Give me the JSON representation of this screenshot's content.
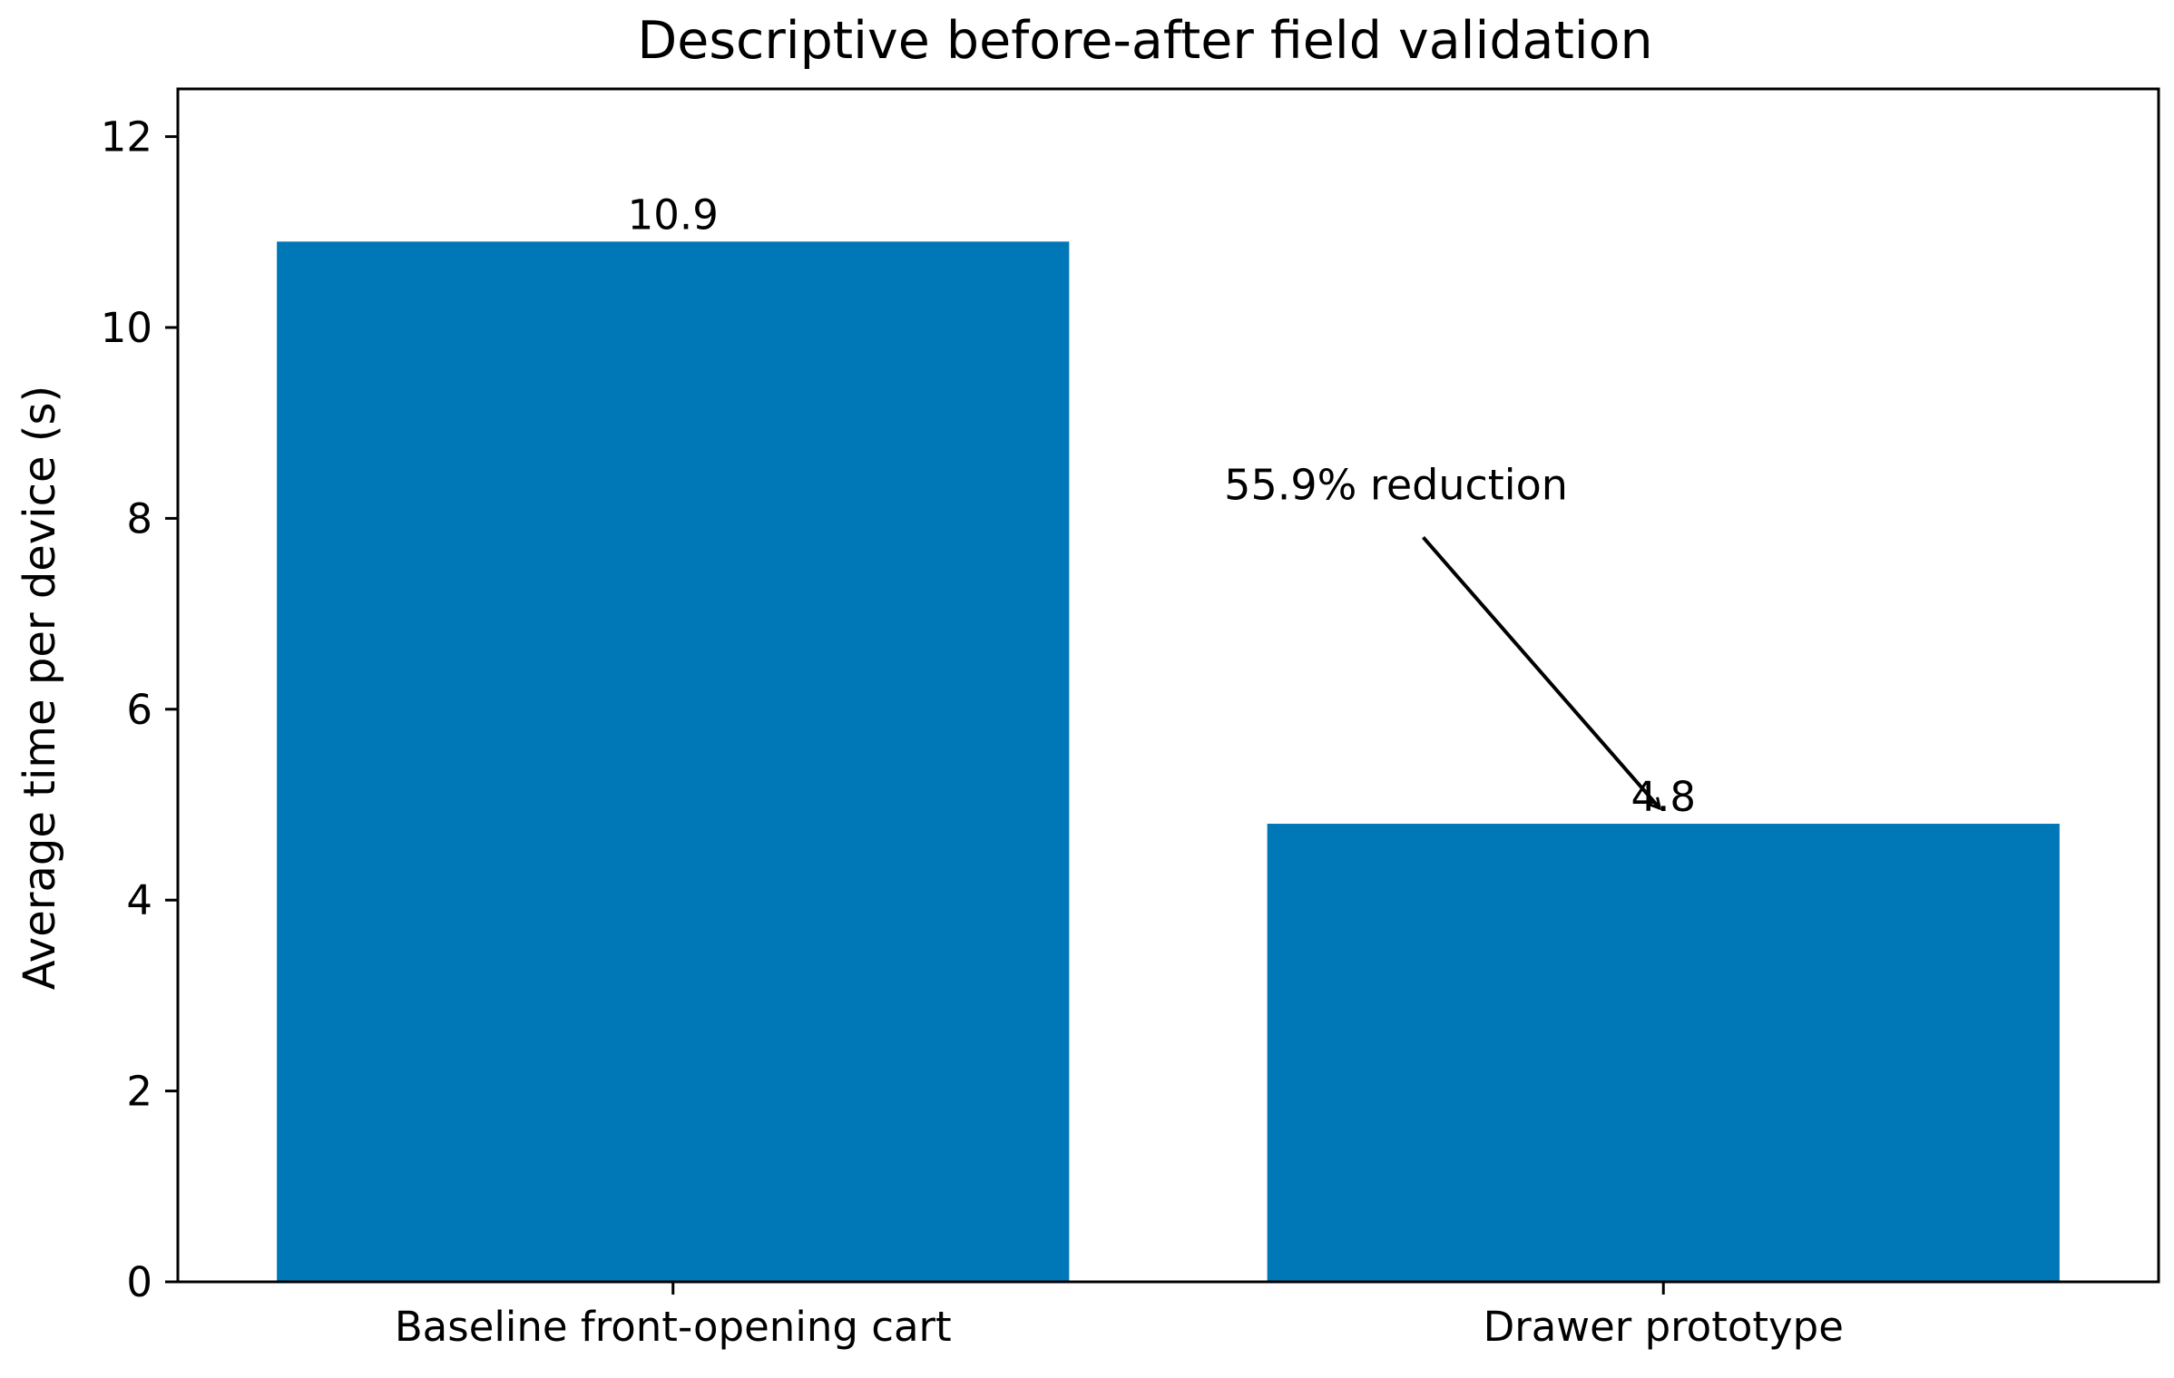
{
  "chart_data": {
    "type": "bar",
    "title": "Descriptive before-after field validation",
    "xlabel": "",
    "ylabel": "Average time per device (s)",
    "categories": [
      "Baseline front-opening cart",
      "Drawer prototype"
    ],
    "values": [
      10.9,
      4.8
    ],
    "data_labels": [
      "10.9",
      "4.8"
    ],
    "ylim": [
      0,
      12.5
    ],
    "yticks": [
      0,
      2,
      4,
      6,
      8,
      10,
      12
    ],
    "grid": false,
    "legend": "none",
    "bar_color": "#0077b6",
    "annotation": {
      "text": "55.9% reduction",
      "target_category": "Drawer prototype",
      "target_value": 4.8,
      "text_anchor_category_offset": -0.27,
      "text_anchor_value": 8.2
    }
  }
}
